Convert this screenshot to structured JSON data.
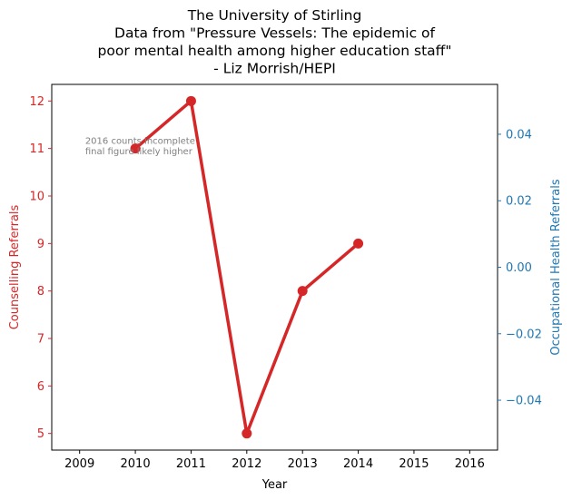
{
  "chart_data": {
    "type": "line",
    "title_lines": [
      "The University of Stirling",
      "Data from \"Pressure Vessels: The epidemic of",
      "poor mental health among higher education staff\"",
      "- Liz Morrish/HEPI"
    ],
    "xlabel": "Year",
    "ylabel_left": "Counselling Referrals",
    "ylabel_right": "Occupational Health Referrals",
    "x_ticks": [
      "2009",
      "2010",
      "2011",
      "2012",
      "2013",
      "2014",
      "2015",
      "2016"
    ],
    "y_left_ticks": [
      "5",
      "6",
      "7",
      "8",
      "9",
      "10",
      "11",
      "12"
    ],
    "y_right_ticks": [
      "−0.04",
      "−0.02",
      "0.00",
      "0.02",
      "0.04"
    ],
    "xlim": [
      2008.5,
      2016.5
    ],
    "ylim_left": [
      4.65,
      12.35
    ],
    "ylim_right": [
      -0.055,
      0.055
    ],
    "y_right_tick_values": [
      -0.04,
      -0.02,
      0.0,
      0.02,
      0.04
    ],
    "series": [
      {
        "name": "Counselling Referrals",
        "axis": "left",
        "x": [
          2010,
          2011,
          2012,
          2013,
          2014
        ],
        "values": [
          11,
          12,
          5,
          8,
          9
        ],
        "color": "#d62728"
      }
    ],
    "annotation": {
      "lines": [
        "2016 counts incomplete",
        "final figure likely higher"
      ],
      "x": 2009.1,
      "y": 11.1
    },
    "colors": {
      "left_axis": "#d62728",
      "right_axis": "#1f77b4",
      "annotation": "#808080"
    }
  }
}
